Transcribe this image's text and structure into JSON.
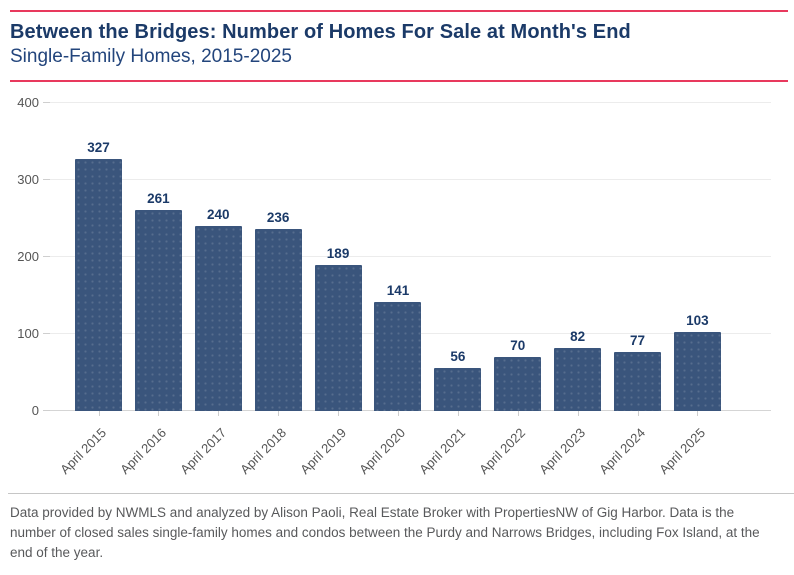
{
  "chart_data": {
    "type": "bar",
    "title": "Between the Bridges: Number of Homes For Sale at Month's End",
    "subtitle": "Single-Family Homes, 2015-2025",
    "categories": [
      "April 2015",
      "April 2016",
      "April 2017",
      "April 2018",
      "April 2019",
      "April 2020",
      "April 2021",
      "April 2022",
      "April 2023",
      "April 2024",
      "April 2025"
    ],
    "values": [
      327,
      261,
      240,
      236,
      189,
      141,
      56,
      70,
      82,
      77,
      103
    ],
    "xlabel": "",
    "ylabel": "",
    "ylim": [
      0,
      400
    ],
    "yticks": [
      0,
      100,
      200,
      300,
      400
    ],
    "grid": true,
    "legend_position": "none",
    "bar_color": "#3a557c",
    "value_label_color": "#1b3a68",
    "axis_text_color": "#555555",
    "accent_rule_color": "#e8395d"
  },
  "footer": {
    "note": "Data provided by NWMLS and analyzed by Alison Paoli, Real Estate Broker with PropertiesNW of Gig Harbor. Data is the number of closed sales single-family homes and condos between the Purdy and Narrows Bridges, including Fox Island, at the end of the year."
  }
}
